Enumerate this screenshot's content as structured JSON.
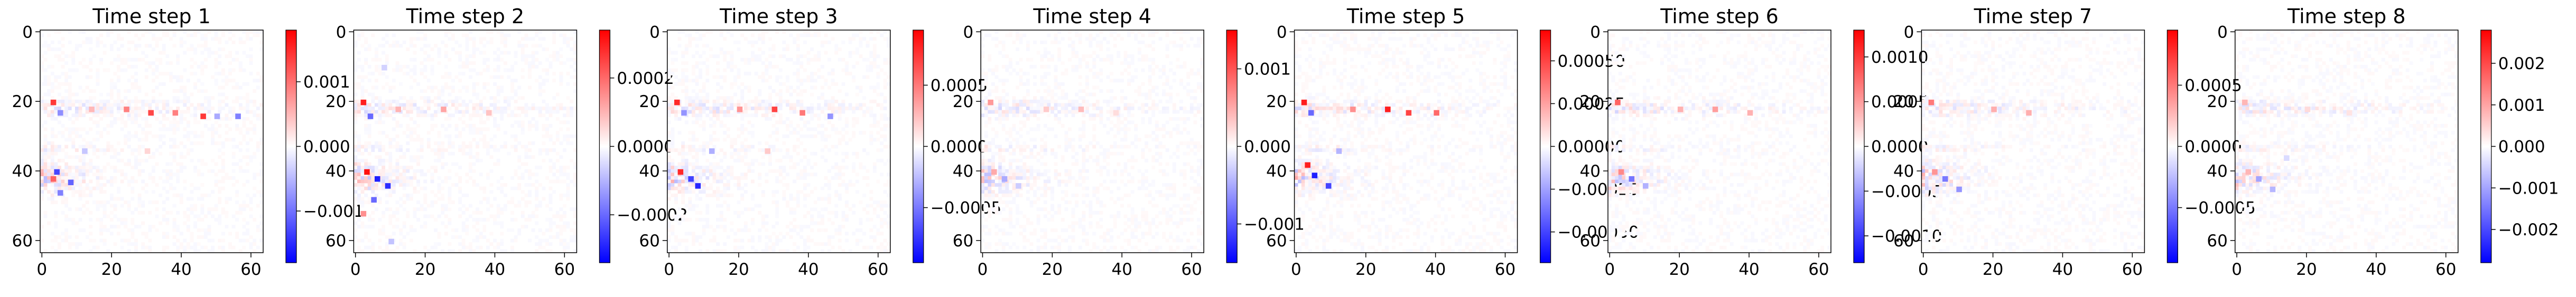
{
  "figure": {
    "background": "#ffffff",
    "colormap": "bwr",
    "colormap_stops": [
      "#0000ff",
      "#ffffff",
      "#ff0000"
    ]
  },
  "chart_data": [
    {
      "type": "heatmap",
      "title": "Time step 1",
      "xlabel": "",
      "ylabel": "",
      "grid_size": [
        64,
        64
      ],
      "xlim": [
        -0.5,
        63.5
      ],
      "ylim": [
        63.5,
        -0.5
      ],
      "x_ticks": [
        0,
        20,
        40,
        60
      ],
      "y_ticks": [
        0,
        20,
        40,
        60
      ],
      "x_tick_labels": [
        "0",
        "20",
        "40",
        "60"
      ],
      "y_tick_labels": [
        "0",
        "20",
        "40",
        "60"
      ],
      "colorbar": {
        "range": [
          -0.0018,
          0.0018
        ],
        "ticks": [
          -0.001,
          0,
          0.001
        ],
        "labels": [
          "−0.001",
          "0.000",
          "0.001"
        ]
      },
      "hotspots": [
        {
          "x": 3,
          "y": 20,
          "value": 0.0014
        },
        {
          "x": 5,
          "y": 23,
          "value": -0.0008
        },
        {
          "x": 14,
          "y": 22,
          "value": 0.0005
        },
        {
          "x": 24,
          "y": 22,
          "value": 0.0009
        },
        {
          "x": 31,
          "y": 23,
          "value": 0.0013
        },
        {
          "x": 38,
          "y": 23,
          "value": 0.0009
        },
        {
          "x": 46,
          "y": 24,
          "value": 0.0014
        },
        {
          "x": 50,
          "y": 24,
          "value": -0.0006
        },
        {
          "x": 56,
          "y": 24,
          "value": -0.0009
        },
        {
          "x": 4,
          "y": 40,
          "value": -0.0013
        },
        {
          "x": 3,
          "y": 42,
          "value": 0.0011
        },
        {
          "x": 8,
          "y": 43,
          "value": -0.0011
        },
        {
          "x": 5,
          "y": 46,
          "value": -0.0009
        },
        {
          "x": 12,
          "y": 34,
          "value": -0.0004
        },
        {
          "x": 30,
          "y": 34,
          "value": 0.0003
        }
      ]
    },
    {
      "type": "heatmap",
      "title": "Time step 2",
      "xlabel": "",
      "ylabel": "",
      "grid_size": [
        64,
        64
      ],
      "xlim": [
        -0.5,
        63.5
      ],
      "ylim": [
        63.5,
        -0.5
      ],
      "x_ticks": [
        0,
        20,
        40,
        60
      ],
      "y_ticks": [
        0,
        20,
        40,
        60
      ],
      "x_tick_labels": [
        "0",
        "20",
        "40",
        "60"
      ],
      "y_tick_labels": [
        "0",
        "20",
        "40",
        "60"
      ],
      "colorbar": {
        "range": [
          -0.00034,
          0.00034
        ],
        "ticks": [
          -0.0002,
          0,
          0.0002
        ],
        "labels": [
          "−0.0002",
          "0.0000",
          "0.0002"
        ]
      },
      "hotspots": [
        {
          "x": 2,
          "y": 20,
          "value": 0.0003
        },
        {
          "x": 4,
          "y": 24,
          "value": -0.0002
        },
        {
          "x": 12,
          "y": 22,
          "value": 0.0001
        },
        {
          "x": 25,
          "y": 22,
          "value": 0.00012
        },
        {
          "x": 38,
          "y": 23,
          "value": 8e-05
        },
        {
          "x": 3,
          "y": 40,
          "value": 0.00032
        },
        {
          "x": 6,
          "y": 42,
          "value": -0.0003
        },
        {
          "x": 9,
          "y": 44,
          "value": -0.00028
        },
        {
          "x": 5,
          "y": 48,
          "value": -0.0002
        },
        {
          "x": 2,
          "y": 52,
          "value": 0.00015
        },
        {
          "x": 8,
          "y": 10,
          "value": -6e-05
        },
        {
          "x": 10,
          "y": 60,
          "value": -8e-05
        }
      ]
    },
    {
      "type": "heatmap",
      "title": "Time step 3",
      "xlabel": "",
      "ylabel": "",
      "grid_size": [
        64,
        64
      ],
      "xlim": [
        -0.5,
        63.5
      ],
      "ylim": [
        63.5,
        -0.5
      ],
      "x_ticks": [
        0,
        20,
        40,
        60
      ],
      "y_ticks": [
        0,
        20,
        40,
        60
      ],
      "x_tick_labels": [
        "0",
        "20",
        "40",
        "60"
      ],
      "y_tick_labels": [
        "0",
        "20",
        "40",
        "60"
      ],
      "colorbar": {
        "range": [
          -0.00095,
          0.00095
        ],
        "ticks": [
          -0.0005,
          0,
          0.0005
        ],
        "labels": [
          "−0.0005",
          "0.0000",
          "0.0005"
        ]
      },
      "hotspots": [
        {
          "x": 2,
          "y": 20,
          "value": 0.0008
        },
        {
          "x": 4,
          "y": 23,
          "value": -0.0004
        },
        {
          "x": 20,
          "y": 22,
          "value": 0.0004
        },
        {
          "x": 30,
          "y": 22,
          "value": 0.0007
        },
        {
          "x": 38,
          "y": 23,
          "value": 0.0005
        },
        {
          "x": 46,
          "y": 24,
          "value": -0.0004
        },
        {
          "x": 3,
          "y": 40,
          "value": 0.0008
        },
        {
          "x": 6,
          "y": 42,
          "value": -0.0007
        },
        {
          "x": 8,
          "y": 44,
          "value": -0.0008
        },
        {
          "x": 12,
          "y": 34,
          "value": -0.0003
        },
        {
          "x": 28,
          "y": 34,
          "value": 0.0002
        }
      ]
    },
    {
      "type": "heatmap",
      "title": "Time step 4",
      "xlabel": "",
      "ylabel": "",
      "grid_size": [
        64,
        64
      ],
      "xlim": [
        -0.5,
        63.5
      ],
      "ylim": [
        63.5,
        -0.5
      ],
      "x_ticks": [
        0,
        20,
        40,
        60
      ],
      "y_ticks": [
        0,
        20,
        40,
        60
      ],
      "x_tick_labels": [
        "0",
        "20",
        "40",
        "60"
      ],
      "y_tick_labels": [
        "0",
        "20",
        "40",
        "60"
      ],
      "colorbar": {
        "range": [
          -0.0015,
          0.0015
        ],
        "ticks": [
          -0.001,
          0,
          0.001
        ],
        "labels": [
          "−0.001",
          "0.000",
          "0.001"
        ]
      },
      "hotspots": [
        {
          "x": 2,
          "y": 20,
          "value": 0.0006
        },
        {
          "x": 18,
          "y": 22,
          "value": 0.0003
        },
        {
          "x": 28,
          "y": 22,
          "value": 0.0004
        },
        {
          "x": 38,
          "y": 23,
          "value": 0.0002
        },
        {
          "x": 3,
          "y": 40,
          "value": 0.0005
        },
        {
          "x": 6,
          "y": 42,
          "value": -0.0005
        },
        {
          "x": 10,
          "y": 44,
          "value": -0.0003
        }
      ]
    },
    {
      "type": "heatmap",
      "title": "Time step 5",
      "xlabel": "",
      "ylabel": "",
      "grid_size": [
        64,
        64
      ],
      "xlim": [
        -0.5,
        63.5
      ],
      "ylim": [
        63.5,
        -0.5
      ],
      "x_ticks": [
        0,
        20,
        40,
        60
      ],
      "y_ticks": [
        0,
        20,
        40,
        60
      ],
      "x_tick_labels": [
        "0",
        "20",
        "40",
        "60"
      ],
      "y_tick_labels": [
        "0",
        "20",
        "40",
        "60"
      ],
      "colorbar": {
        "range": [
          -0.00068,
          0.00068
        ],
        "ticks": [
          -0.0005,
          -0.00025,
          0,
          0.00025,
          0.0005
        ],
        "labels": [
          "−0.00050",
          "−0.00025",
          "0.00000",
          "0.00025",
          "0.00050"
        ]
      },
      "hotspots": [
        {
          "x": 2,
          "y": 20,
          "value": 0.0006
        },
        {
          "x": 4,
          "y": 23,
          "value": -0.0004
        },
        {
          "x": 16,
          "y": 22,
          "value": 0.0003
        },
        {
          "x": 26,
          "y": 22,
          "value": 0.0006
        },
        {
          "x": 32,
          "y": 23,
          "value": 0.0005
        },
        {
          "x": 40,
          "y": 23,
          "value": 0.0004
        },
        {
          "x": 3,
          "y": 38,
          "value": 0.0006
        },
        {
          "x": 5,
          "y": 41,
          "value": -0.0006
        },
        {
          "x": 9,
          "y": 44,
          "value": -0.0005
        },
        {
          "x": 12,
          "y": 34,
          "value": -0.0002
        }
      ]
    },
    {
      "type": "heatmap",
      "title": "Time step 6",
      "xlabel": "",
      "ylabel": "",
      "grid_size": [
        64,
        64
      ],
      "xlim": [
        -0.5,
        63.5
      ],
      "ylim": [
        63.5,
        -0.5
      ],
      "x_ticks": [
        0,
        20,
        40,
        60
      ],
      "y_ticks": [
        0,
        20,
        40,
        60
      ],
      "x_tick_labels": [
        "0",
        "20",
        "40",
        "60"
      ],
      "y_tick_labels": [
        "0",
        "20",
        "40",
        "60"
      ],
      "colorbar": {
        "range": [
          -0.0013,
          0.0013
        ],
        "ticks": [
          -0.001,
          -0.0005,
          0,
          0.0005,
          0.001
        ],
        "labels": [
          "−0.0010",
          "−0.0005",
          "0.0000",
          "0.0005",
          "0.0010"
        ]
      },
      "hotspots": [
        {
          "x": 2,
          "y": 20,
          "value": 0.0008
        },
        {
          "x": 20,
          "y": 22,
          "value": 0.0004
        },
        {
          "x": 30,
          "y": 22,
          "value": 0.0005
        },
        {
          "x": 40,
          "y": 23,
          "value": 0.0004
        },
        {
          "x": 3,
          "y": 40,
          "value": 0.0006
        },
        {
          "x": 6,
          "y": 42,
          "value": -0.0007
        },
        {
          "x": 10,
          "y": 44,
          "value": -0.0004
        }
      ]
    },
    {
      "type": "heatmap",
      "title": "Time step 7",
      "xlabel": "",
      "ylabel": "",
      "grid_size": [
        64,
        64
      ],
      "xlim": [
        -0.5,
        63.5
      ],
      "ylim": [
        63.5,
        -0.5
      ],
      "x_ticks": [
        0,
        20,
        40,
        60
      ],
      "y_ticks": [
        0,
        20,
        40,
        60
      ],
      "x_tick_labels": [
        "0",
        "20",
        "40",
        "60"
      ],
      "y_tick_labels": [
        "0",
        "20",
        "40",
        "60"
      ],
      "colorbar": {
        "range": [
          -0.00095,
          0.00095
        ],
        "ticks": [
          -0.0005,
          0,
          0.0005
        ],
        "labels": [
          "−0.0005",
          "0.0000",
          "0.0005"
        ]
      },
      "hotspots": [
        {
          "x": 2,
          "y": 20,
          "value": 0.0005
        },
        {
          "x": 20,
          "y": 22,
          "value": 0.0003
        },
        {
          "x": 30,
          "y": 23,
          "value": 0.0003
        },
        {
          "x": 3,
          "y": 40,
          "value": 0.0004
        },
        {
          "x": 6,
          "y": 42,
          "value": -0.0005
        },
        {
          "x": 10,
          "y": 45,
          "value": -0.0004
        }
      ]
    },
    {
      "type": "heatmap",
      "title": "Time step 8",
      "xlabel": "",
      "ylabel": "",
      "grid_size": [
        64,
        64
      ],
      "xlim": [
        -0.5,
        63.5
      ],
      "ylim": [
        63.5,
        -0.5
      ],
      "x_ticks": [
        0,
        20,
        40,
        60
      ],
      "y_ticks": [
        0,
        20,
        40,
        60
      ],
      "x_tick_labels": [
        "0",
        "20",
        "40",
        "60"
      ],
      "y_tick_labels": [
        "0",
        "20",
        "40",
        "60"
      ],
      "colorbar": {
        "range": [
          -0.0028,
          0.0028
        ],
        "ticks": [
          -0.002,
          -0.001,
          0,
          0.001,
          0.002
        ],
        "labels": [
          "−0.002",
          "−0.001",
          "0.000",
          "0.001",
          "0.002"
        ]
      },
      "hotspots": [
        {
          "x": 2,
          "y": 20,
          "value": 0.0008
        },
        {
          "x": 20,
          "y": 22,
          "value": 0.0004
        },
        {
          "x": 32,
          "y": 23,
          "value": 0.0003
        },
        {
          "x": 3,
          "y": 40,
          "value": 0.0008
        },
        {
          "x": 6,
          "y": 42,
          "value": -0.001
        },
        {
          "x": 10,
          "y": 45,
          "value": -0.0008
        },
        {
          "x": 14,
          "y": 36,
          "value": -0.0004
        }
      ]
    }
  ]
}
